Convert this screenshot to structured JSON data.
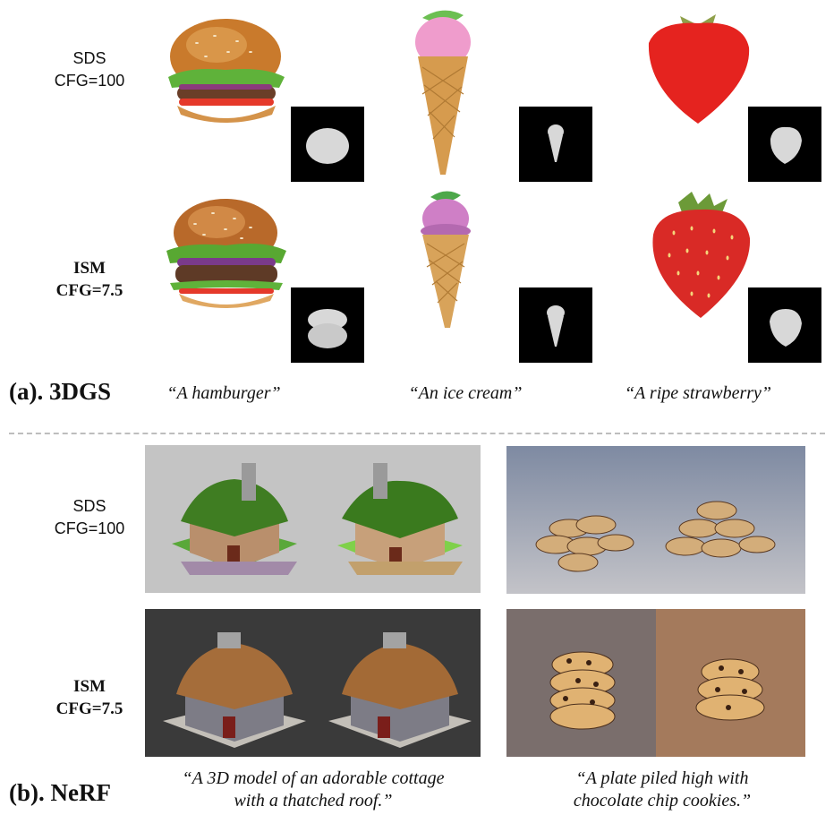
{
  "part_a": {
    "rows": [
      {
        "method": "SDS",
        "cfg": "CFG=100"
      },
      {
        "method": "ISM",
        "cfg": "CFG=7.5"
      }
    ],
    "section_label": "(a). 3DGS",
    "prompts": [
      "“A hamburger”",
      "“An ice cream”",
      "“A ripe strawberry”"
    ]
  },
  "part_b": {
    "rows": [
      {
        "method": "SDS",
        "cfg": "CFG=100"
      },
      {
        "method": "ISM",
        "cfg": "CFG=7.5"
      }
    ],
    "section_label": "(b). NeRF",
    "prompts": [
      {
        "line1": "“A 3D model of an adorable cottage",
        "line2": "with a thatched roof.”"
      },
      {
        "line1": "“A plate piled high with",
        "line2": "chocolate chip cookies.”"
      }
    ]
  },
  "colors": {
    "mask_bg": "#000000",
    "divider": "#bdbdbd",
    "sds_cottage_bg": "#c4c4c4",
    "ism_cottage_bg": "#3a3a3a",
    "sds_cookie_bg": "#8a96a8",
    "ism_cookie_bg_left": "#7a6e6c",
    "ism_cookie_bg_right": "#a47a5c"
  }
}
